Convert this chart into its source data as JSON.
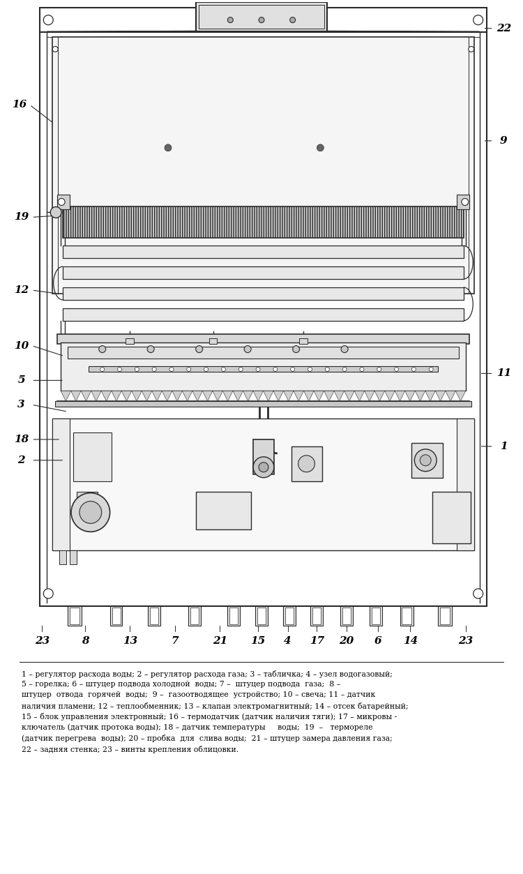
{
  "bg_color": "#ffffff",
  "line_color": "#2a2a2a",
  "text_color": "#000000",
  "fig_width": 7.5,
  "fig_height": 12.53,
  "caption_lines": [
    "1 – регулятор расхода воды; 2 – регулятор расхода газа; 3 – табличка; 4 – узел водогазовый;",
    "5 – горелка; 6 – штуцер подвода холодной  воды; 7 –  штуцер подвода  газа;  8 –",
    "штуцер  отвода  горячей  воды;  9 –  газоотводящее  устройство; 10 – свеча; 11 – датчик",
    "наличия пламени; 12 – теплообменник; 13 – клапан электромагнитный; 14 – отсек батарейный;",
    "15 – блок управления электронный; 16 – термодатчик (датчик наличия тяги); 17 – микровы -",
    "ключатель (датчик протока воды); 18 – датчик температуры     воды;  19  –   термореле",
    "(датчик перегрева  воды); 20 – пробка  для  слива воды;  21 – штуцер замера давления газа;",
    "22 – задняя стенка; 23 – винты крепления облицовки."
  ]
}
